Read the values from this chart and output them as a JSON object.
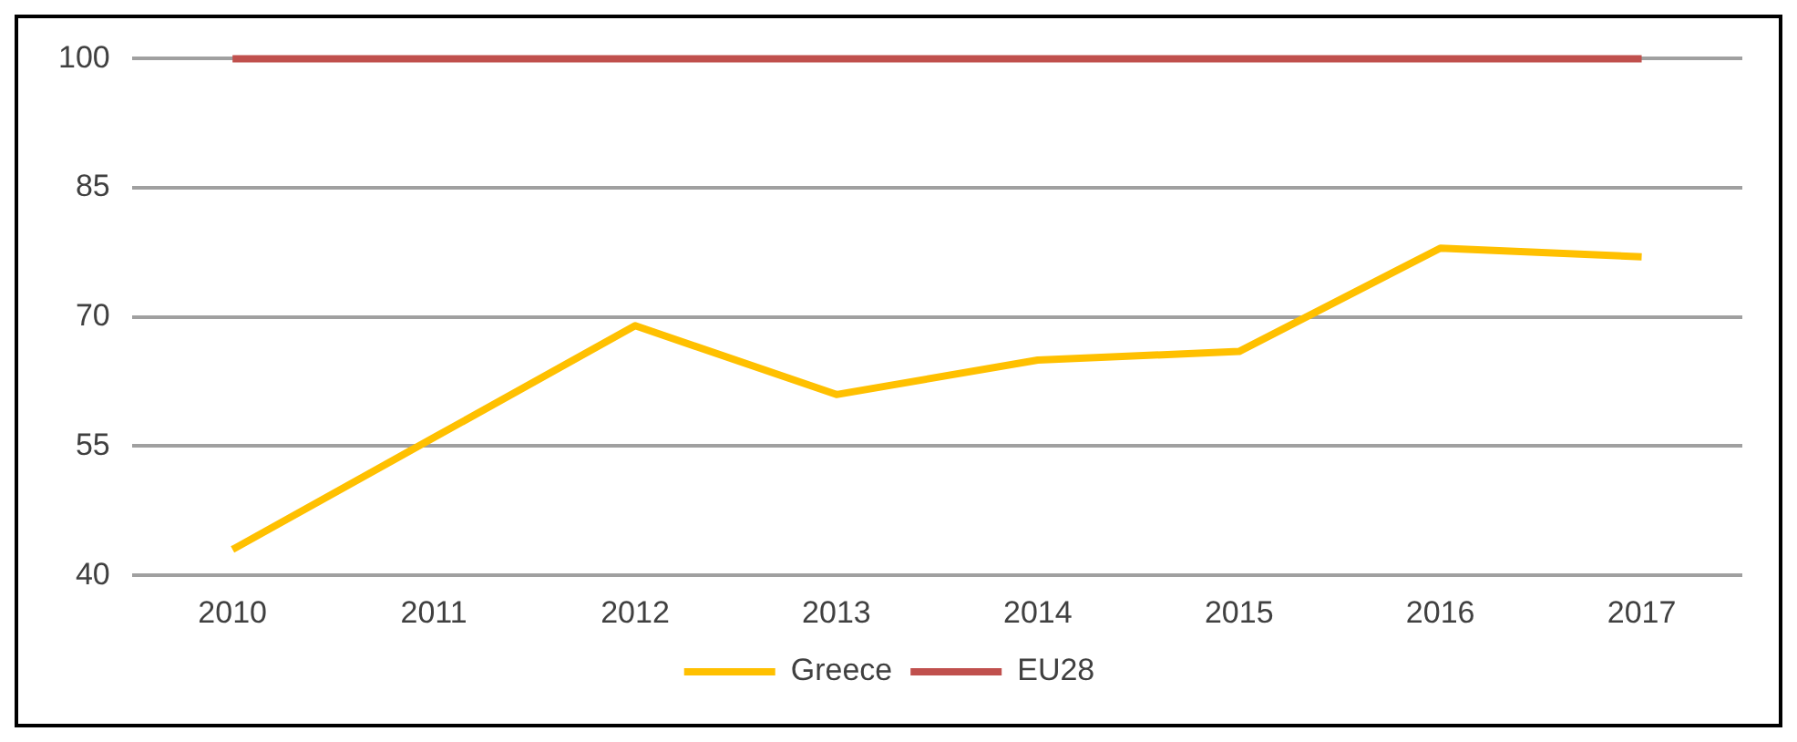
{
  "chart_data": {
    "type": "line",
    "categories": [
      "2010",
      "2011",
      "2012",
      "2013",
      "2014",
      "2015",
      "2016",
      "2017"
    ],
    "series": [
      {
        "name": "Greece",
        "color": "#ffc000",
        "values": [
          43,
          56,
          69,
          61,
          65,
          66,
          78,
          77
        ]
      },
      {
        "name": "EU28",
        "color": "#c0504d",
        "values": [
          100,
          100,
          100,
          100,
          100,
          100,
          100,
          100
        ]
      }
    ],
    "ylim": [
      40,
      100
    ],
    "yticks": [
      40,
      55,
      70,
      85,
      100
    ],
    "grid": "y",
    "legend": "bottom",
    "marker": "none",
    "line_style": "solid"
  }
}
